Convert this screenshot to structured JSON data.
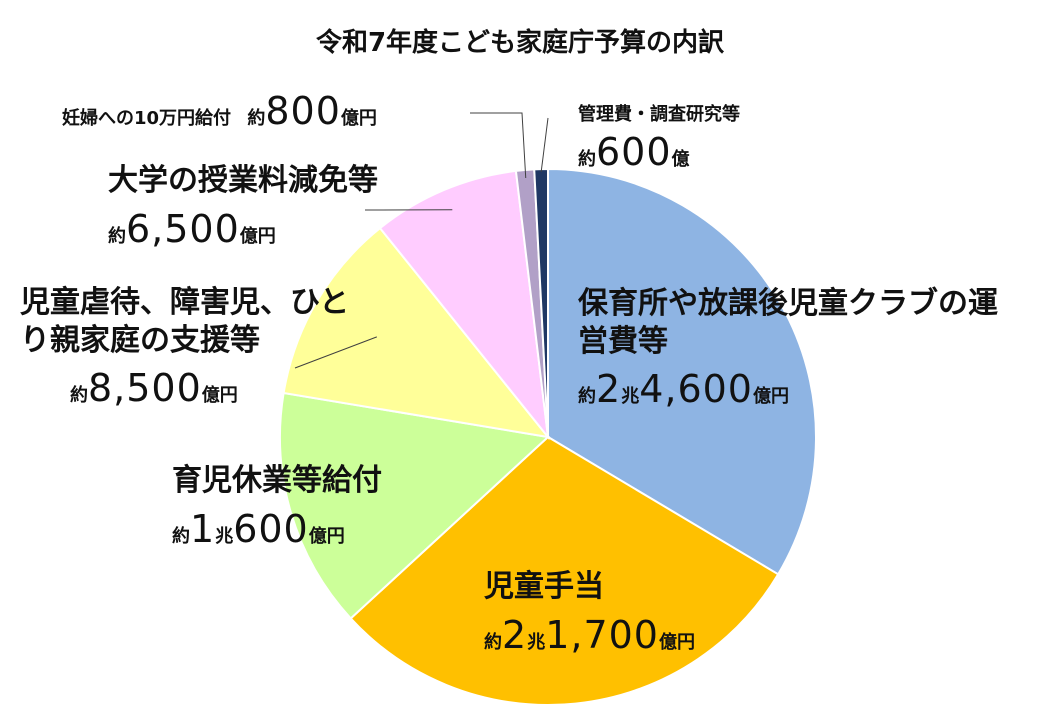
{
  "chart_data": {
    "type": "pie",
    "title": "令和7年度こども家庭庁予算の内訳",
    "unit": "億円",
    "start_angle_deg": 0,
    "direction": "clockwise",
    "slices": [
      {
        "name": "保育所や放課後児童クラブの運営費等",
        "value": 24600,
        "color": "#8EB4E3",
        "amount_parts": [
          "約",
          "2",
          "兆",
          "4,600",
          "億円"
        ]
      },
      {
        "name": "児童手当",
        "value": 21700,
        "color": "#FFC000",
        "amount_parts": [
          "約",
          "2",
          "兆",
          "1,700",
          "億円"
        ]
      },
      {
        "name": "育児休業等給付",
        "value": 10600,
        "color": "#CCFF99",
        "amount_parts": [
          "約",
          "1",
          "兆",
          "600",
          "億円"
        ]
      },
      {
        "name": "児童虐待、障害児、ひとり親家庭の支援等",
        "value": 8500,
        "color": "#FFFF99",
        "amount_parts": [
          "約",
          "8,500",
          "億円"
        ]
      },
      {
        "name": "大学の授業料減免等",
        "value": 6500,
        "color": "#FFCCFF",
        "amount_parts": [
          "約",
          "6,500",
          "億円"
        ]
      },
      {
        "name": "妊婦への10万円給付",
        "value": 800,
        "color": "#B1A0C7",
        "amount_parts": [
          "約",
          "800",
          "億円"
        ]
      },
      {
        "name": "管理費・調査研究等",
        "value": 600,
        "color": "#1F3864",
        "amount_parts": [
          "約",
          "600",
          "億"
        ]
      }
    ]
  }
}
